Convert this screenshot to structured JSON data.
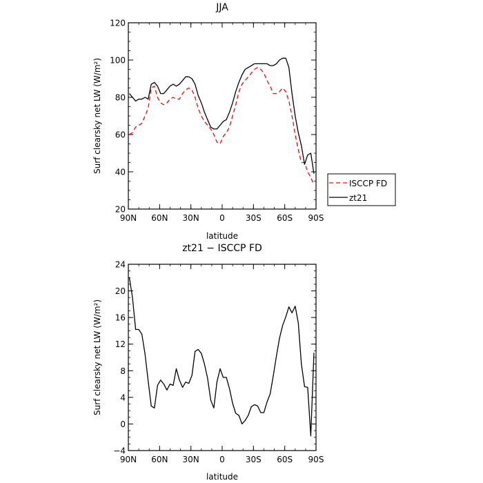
{
  "chart_data": [
    {
      "type": "line",
      "title": "JJA",
      "xlabel": "latitude",
      "ylabel": "Surf clearsky net LW (W/m²)",
      "x_range": [
        90,
        -90
      ],
      "ylim": [
        20,
        120
      ],
      "x_ticks": [
        {
          "value": 90,
          "label": "90N"
        },
        {
          "value": 60,
          "label": "60N"
        },
        {
          "value": 30,
          "label": "30N"
        },
        {
          "value": 0,
          "label": "0"
        },
        {
          "value": -30,
          "label": "30S"
        },
        {
          "value": -60,
          "label": "60S"
        },
        {
          "value": -90,
          "label": "90S"
        }
      ],
      "y_ticks": [
        20,
        40,
        60,
        80,
        100,
        120
      ],
      "legend_position": "right, outside plot",
      "series": [
        {
          "name": "ISCCP FD",
          "color": "#ff0000",
          "dash": "dashed",
          "x": [
            89,
            86,
            83,
            80,
            77,
            74,
            71,
            68,
            65,
            62,
            59,
            56,
            53,
            50,
            47,
            44,
            41,
            38,
            35,
            32,
            29,
            26,
            23,
            20,
            17,
            14,
            11,
            8,
            5,
            2,
            -1,
            -4,
            -7,
            -10,
            -13,
            -16,
            -19,
            -22,
            -25,
            -28,
            -31,
            -34,
            -37,
            -40,
            -43,
            -46,
            -49,
            -52,
            -55,
            -58,
            -61,
            -64,
            -67,
            -70,
            -73,
            -76,
            -79,
            -82,
            -85,
            -88
          ],
          "y": [
            60,
            61,
            64,
            65,
            66,
            70,
            74,
            85,
            86,
            80,
            77,
            76,
            77,
            79,
            80,
            79,
            79,
            82,
            84,
            85,
            84,
            80,
            74,
            70,
            67,
            65,
            63,
            60,
            56,
            55,
            59,
            61,
            64,
            70,
            76,
            83,
            87,
            89,
            91,
            93,
            95,
            96,
            95,
            93,
            89,
            86,
            82,
            82,
            83,
            85,
            83,
            78,
            70,
            60,
            52,
            45,
            45,
            40,
            37,
            33
          ]
        },
        {
          "name": "zt21",
          "color": "#000000",
          "dash": "solid",
          "x": [
            89,
            86,
            83,
            80,
            77,
            74,
            71,
            68,
            65,
            62,
            59,
            56,
            53,
            50,
            47,
            44,
            41,
            38,
            35,
            32,
            29,
            26,
            23,
            20,
            17,
            14,
            11,
            8,
            5,
            2,
            -1,
            -4,
            -7,
            -10,
            -13,
            -16,
            -19,
            -22,
            -25,
            -28,
            -31,
            -34,
            -37,
            -40,
            -43,
            -46,
            -49,
            -52,
            -55,
            -58,
            -61,
            -64,
            -67,
            -70,
            -73,
            -76,
            -79,
            -82,
            -85,
            -88
          ],
          "y": [
            82,
            80,
            78,
            79,
            79,
            80,
            79,
            87,
            88,
            86,
            82,
            82,
            84,
            86,
            87,
            86,
            87,
            89,
            91,
            91,
            90,
            87,
            81,
            77,
            72,
            68,
            64,
            63,
            63,
            65,
            67,
            68,
            72,
            77,
            83,
            88,
            92,
            95,
            96,
            97,
            98,
            98,
            98,
            98,
            98,
            97,
            97,
            98,
            100,
            101,
            101,
            96,
            82,
            70,
            61,
            54,
            44,
            49,
            50,
            39
          ]
        }
      ]
    },
    {
      "type": "line",
      "title": "zt21 − ISCCP FD",
      "xlabel": "latitude",
      "ylabel": "Surf clearsky net LW (W/m²)",
      "x_range": [
        90,
        -90
      ],
      "ylim": [
        -4,
        24
      ],
      "x_ticks": [
        {
          "value": 90,
          "label": "90N"
        },
        {
          "value": 60,
          "label": "60N"
        },
        {
          "value": 30,
          "label": "30N"
        },
        {
          "value": 0,
          "label": "0"
        },
        {
          "value": -30,
          "label": "30S"
        },
        {
          "value": -60,
          "label": "60S"
        },
        {
          "value": -90,
          "label": "90S"
        }
      ],
      "y_ticks": [
        -4,
        0,
        4,
        8,
        12,
        16,
        20,
        24
      ],
      "series": [
        {
          "color": "#000000",
          "dash": "solid",
          "x": [
            89,
            86,
            83,
            80,
            77,
            74,
            71,
            68,
            65,
            62,
            59,
            56,
            53,
            50,
            47,
            44,
            41,
            38,
            35,
            32,
            29,
            26,
            23,
            20,
            17,
            14,
            11,
            8,
            5,
            2,
            -1,
            -4,
            -7,
            -10,
            -13,
            -16,
            -19,
            -22,
            -25,
            -28,
            -31,
            -34,
            -37,
            -40,
            -43,
            -46,
            -49,
            -52,
            -55,
            -58,
            -61,
            -64,
            -67,
            -70,
            -73,
            -76,
            -79,
            -82,
            -85,
            -88
          ],
          "y": [
            22,
            19,
            14.2,
            14.2,
            13.5,
            10.5,
            6.5,
            2.7,
            2.4,
            5.8,
            6.6,
            6.0,
            5.1,
            6.0,
            5.8,
            8.3,
            6.6,
            5.5,
            6.3,
            6.1,
            7.3,
            10.9,
            11.2,
            10.6,
            9.0,
            6.9,
            3.6,
            2.4,
            6.3,
            8.3,
            7.0,
            7.0,
            5.3,
            3.1,
            1.6,
            1.3,
            0.0,
            0.5,
            1.3,
            2.6,
            2.9,
            2.7,
            1.7,
            1.7,
            3.3,
            4.5,
            7.2,
            10.2,
            12.9,
            14.8,
            16.1,
            17.6,
            16.7,
            17.7,
            15.2,
            9.0,
            5.6,
            5.5,
            -1.8,
            10.7
          ]
        }
      ]
    }
  ]
}
